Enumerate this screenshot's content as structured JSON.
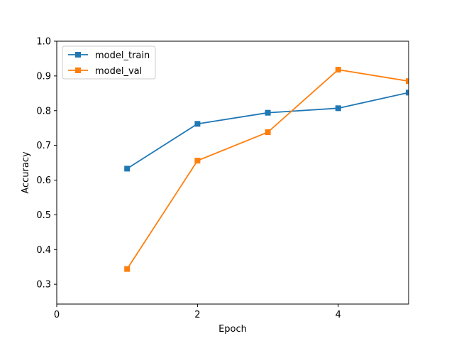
{
  "chart_data": {
    "type": "line",
    "title": "",
    "xlabel": "Epoch",
    "ylabel": "Accuracy",
    "xlim": [
      0,
      5
    ],
    "ylim": [
      0.243,
      1.0
    ],
    "xticks": [
      0,
      2,
      4
    ],
    "xtick_labels": [
      "0",
      "2",
      "4"
    ],
    "yticks": [
      0.3,
      0.4,
      0.5,
      0.6,
      0.7,
      0.8,
      0.9,
      1.0
    ],
    "ytick_labels": [
      "0.3",
      "0.4",
      "0.5",
      "0.6",
      "0.7",
      "0.8",
      "0.9",
      "1.0"
    ],
    "grid": false,
    "legend_position": "top-left",
    "x": [
      1,
      2,
      3,
      4,
      5
    ],
    "series": [
      {
        "name": "model_train",
        "color": "#1f77b4",
        "marker": "square",
        "values": [
          0.633,
          0.762,
          0.794,
          0.807,
          0.852
        ]
      },
      {
        "name": "model_val",
        "color": "#ff7f0e",
        "marker": "square",
        "values": [
          0.344,
          0.656,
          0.738,
          0.918,
          0.885
        ]
      }
    ]
  }
}
